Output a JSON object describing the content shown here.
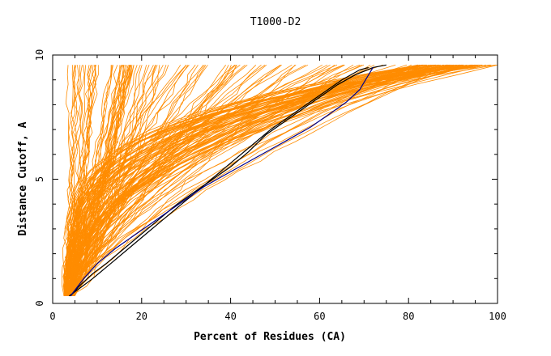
{
  "chart_data": {
    "type": "line",
    "title": "T1000-D2",
    "xlabel": "Percent of Residues (CA)",
    "ylabel": "Distance Cutoff, A",
    "xlim": [
      0,
      100
    ],
    "ylim": [
      0,
      10
    ],
    "xticks": [
      0,
      20,
      40,
      60,
      80,
      100
    ],
    "yticks": [
      0,
      5,
      10
    ],
    "xtick_labels": [
      "0",
      "20",
      "40",
      "60",
      "80",
      "100"
    ],
    "ytick_labels": [
      "0",
      "5",
      "10"
    ],
    "grid": false,
    "legend": "none",
    "background_series_color": "#ff8c00",
    "background_groups": [
      {
        "count": 55,
        "end_x": [
          2.5,
          25
        ],
        "curvature": [
          0.55,
          1.0
        ]
      },
      {
        "count": 35,
        "end_x": [
          20,
          58
        ],
        "curvature": [
          0.9,
          1.8
        ]
      },
      {
        "count": 60,
        "end_x": [
          82,
          100
        ],
        "curvature": [
          2.2,
          4.5
        ]
      },
      {
        "count": 30,
        "end_x": [
          55,
          92
        ],
        "curvature": [
          1.3,
          2.4
        ]
      }
    ],
    "series": [
      {
        "color": "#000000",
        "points": [
          [
            3.7,
            0.3
          ],
          [
            6,
            0.6
          ],
          [
            9,
            1.0
          ],
          [
            13,
            1.6
          ],
          [
            17,
            2.2
          ],
          [
            21,
            2.8
          ],
          [
            25,
            3.4
          ],
          [
            29,
            4.0
          ],
          [
            33,
            4.6
          ],
          [
            37,
            5.2
          ],
          [
            41,
            5.8
          ],
          [
            45,
            6.4
          ],
          [
            49,
            7.0
          ],
          [
            53,
            7.5
          ],
          [
            57,
            8.0
          ],
          [
            61,
            8.5
          ],
          [
            65,
            9.0
          ],
          [
            69,
            9.4
          ],
          [
            71,
            9.5
          ]
        ]
      },
      {
        "color": "#000000",
        "points": [
          [
            4,
            0.3
          ],
          [
            6,
            0.7
          ],
          [
            9,
            1.2
          ],
          [
            12,
            1.6
          ],
          [
            16,
            2.2
          ],
          [
            20,
            2.8
          ],
          [
            24,
            3.4
          ],
          [
            28,
            4.0
          ],
          [
            32,
            4.5
          ],
          [
            36,
            5.0
          ],
          [
            40,
            5.5
          ],
          [
            44,
            6.1
          ],
          [
            48,
            6.8
          ],
          [
            52,
            7.3
          ],
          [
            56,
            7.8
          ],
          [
            60,
            8.3
          ],
          [
            64,
            8.8
          ],
          [
            68,
            9.2
          ],
          [
            72,
            9.5
          ],
          [
            75,
            9.6
          ]
        ]
      },
      {
        "color": "#00008b",
        "points": [
          [
            4,
            0.3
          ],
          [
            7,
            1.0
          ],
          [
            10,
            1.6
          ],
          [
            14,
            2.2
          ],
          [
            18,
            2.7
          ],
          [
            22,
            3.2
          ],
          [
            26,
            3.7
          ],
          [
            30,
            4.2
          ],
          [
            34,
            4.7
          ],
          [
            38,
            5.1
          ],
          [
            42,
            5.5
          ],
          [
            46,
            5.9
          ],
          [
            50,
            6.3
          ],
          [
            54,
            6.7
          ],
          [
            58,
            7.1
          ],
          [
            62,
            7.6
          ],
          [
            66,
            8.1
          ],
          [
            69,
            8.6
          ],
          [
            71,
            9.2
          ],
          [
            72,
            9.5
          ]
        ]
      }
    ]
  }
}
